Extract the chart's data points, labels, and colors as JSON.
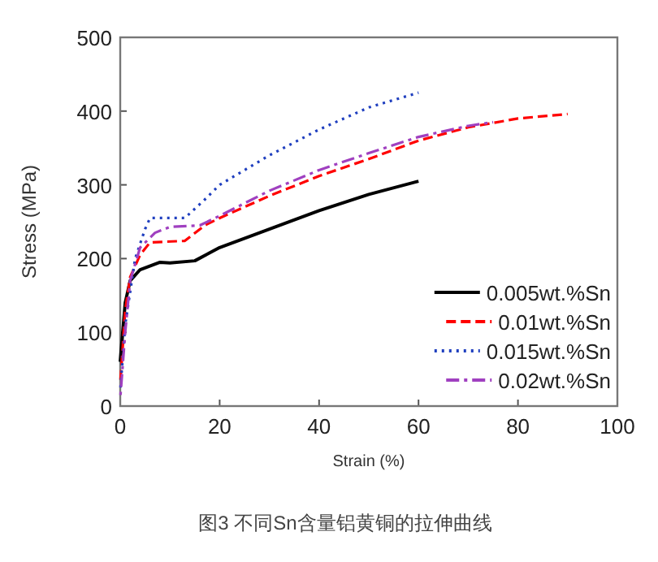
{
  "chart_data": {
    "type": "line",
    "xlabel": "Strain (%)",
    "ylabel": "Stress (MPa)",
    "annotations": [
      "图3  不同Sn含量铝黄铜的拉伸曲线"
    ],
    "xlim": [
      0,
      100
    ],
    "ylim": [
      0,
      500
    ],
    "xticks": [
      0,
      20,
      40,
      60,
      80,
      100
    ],
    "yticks": [
      0,
      100,
      200,
      300,
      400,
      500
    ],
    "grid": false,
    "legend": "bottom right",
    "series": [
      {
        "name": "0.005wt.%Sn",
        "color": "#000000",
        "line_style": "solid",
        "x": [
          0,
          0.5,
          1,
          2,
          4,
          8,
          10,
          15,
          20,
          30,
          40,
          50,
          60
        ],
        "values": [
          60,
          100,
          140,
          170,
          185,
          195,
          194,
          197,
          215,
          240,
          265,
          287,
          305
        ]
      },
      {
        "name": "0.01wt.%Sn",
        "color": "#ff0000",
        "line_style": "dashed",
        "x": [
          0,
          1,
          2,
          4,
          6,
          13,
          17,
          20,
          30,
          40,
          50,
          60,
          70,
          80,
          90
        ],
        "values": [
          30,
          130,
          175,
          205,
          222,
          224,
          245,
          255,
          285,
          312,
          335,
          360,
          378,
          390,
          396
        ]
      },
      {
        "name": "0.015wt.%Sn",
        "color": "#1f3fbf",
        "line_style": "dotted",
        "x": [
          0,
          1,
          3,
          5,
          6,
          10,
          13,
          17,
          20,
          30,
          40,
          50,
          60
        ],
        "values": [
          20,
          110,
          200,
          240,
          255,
          255,
          255,
          280,
          300,
          340,
          375,
          405,
          425
        ]
      },
      {
        "name": "0.02wt.%Sn",
        "color": "#a040c0",
        "line_style": "dashdot",
        "x": [
          0,
          1,
          2,
          4,
          7,
          10,
          16,
          20,
          30,
          40,
          50,
          60,
          70,
          75
        ],
        "values": [
          10,
          100,
          170,
          215,
          235,
          243,
          245,
          258,
          292,
          320,
          343,
          365,
          380,
          385
        ]
      }
    ]
  }
}
